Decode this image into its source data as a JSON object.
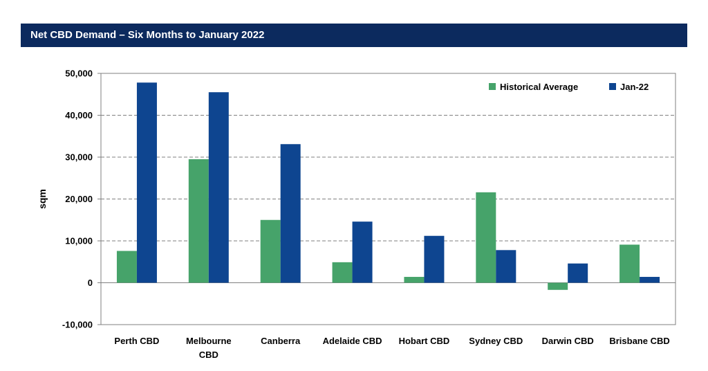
{
  "header": {
    "title": "Net CBD Demand – Six Months to January 2022"
  },
  "chart_data": {
    "type": "bar",
    "title": "Net CBD Demand – Six Months to January 2022",
    "xlabel": "",
    "ylabel": "sqm",
    "ylim": [
      -10000,
      50000
    ],
    "yticks": [
      -10000,
      0,
      10000,
      20000,
      30000,
      40000,
      50000
    ],
    "ytick_labels": [
      "-10,000",
      "0",
      "10,000",
      "20,000",
      "30,000",
      "40,000",
      "50,000"
    ],
    "grid": true,
    "legend_position": "top-right",
    "categories": [
      [
        "Perth CBD"
      ],
      [
        "Melbourne",
        "CBD"
      ],
      [
        "Canberra"
      ],
      [
        "Adelaide CBD"
      ],
      [
        "Hobart CBD"
      ],
      [
        "Sydney CBD"
      ],
      [
        "Darwin CBD"
      ],
      [
        "Brisbane CBD"
      ]
    ],
    "series": [
      {
        "name": "Historical Average",
        "color": "#46a36a",
        "values": [
          7600,
          29500,
          15000,
          4900,
          1400,
          21600,
          -1700,
          9100
        ]
      },
      {
        "name": "Jan-22",
        "color": "#0e4590",
        "values": [
          47800,
          45500,
          33100,
          14600,
          11200,
          7800,
          4600,
          1400
        ]
      }
    ]
  }
}
